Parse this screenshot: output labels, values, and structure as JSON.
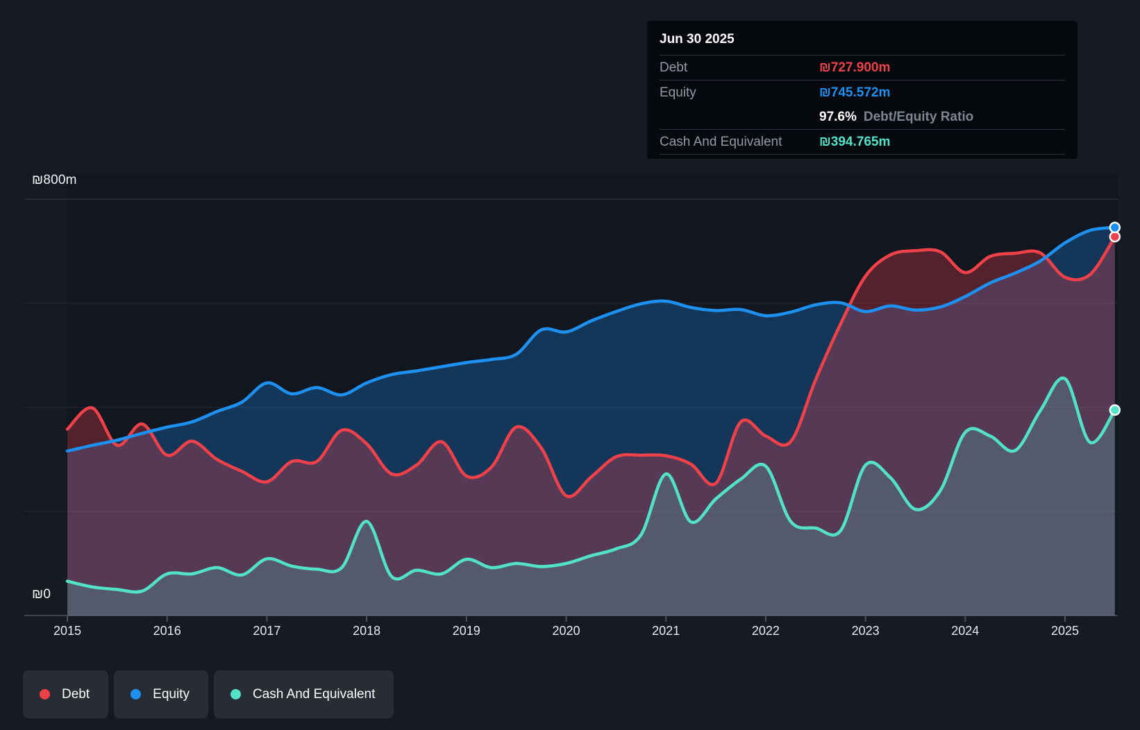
{
  "tooltip": {
    "date": "Jun 30 2025",
    "debt": {
      "label": "Debt",
      "value": "₪727.900m"
    },
    "equity": {
      "label": "Equity",
      "value": "₪745.572m"
    },
    "ratio": {
      "value": "97.6%",
      "label": "Debt/Equity Ratio"
    },
    "cash": {
      "label": "Cash And Equivalent",
      "value": "₪394.765m"
    }
  },
  "legend": {
    "items": [
      {
        "label": "Debt"
      },
      {
        "label": "Equity"
      },
      {
        "label": "Cash And Equivalent"
      }
    ]
  },
  "y_axis": {
    "top_label": "₪800m",
    "zero_label": "₪0"
  },
  "colors": {
    "debt": "#ef4149",
    "equity": "#1e90f0",
    "cash": "#52e2c6",
    "background": "#151a23",
    "plot_background": "#11161f",
    "tooltip_background": "#06090d",
    "gridline": "#232a33",
    "gridline_top": "#353c47",
    "axis_line": "#3d4450",
    "tick": "#4a515c",
    "x_label": "#e8ebef",
    "y_label": "#f3f5f7",
    "tooltip_label": "#929aa5"
  },
  "chart_data": {
    "type": "area",
    "currency": "₪",
    "unit": "m",
    "ylim": [
      0,
      800
    ],
    "y_gridlines": [
      800,
      600,
      400,
      200,
      0
    ],
    "y_tick_labels": [
      {
        "value": 800,
        "label": "₪800m"
      },
      {
        "value": 0,
        "label": "₪0"
      }
    ],
    "x_ticks": [
      2015,
      2016,
      2017,
      2018,
      2019,
      2020,
      2021,
      2022,
      2023,
      2024,
      2025
    ],
    "x_range": [
      2015,
      2025.5
    ],
    "grid": true,
    "legend_position": "bottom-left",
    "last_point_date": "Jun 30 2025",
    "x": [
      2015,
      2015.25,
      2015.5,
      2015.75,
      2016,
      2016.25,
      2016.5,
      2016.75,
      2017,
      2017.25,
      2017.5,
      2017.75,
      2018,
      2018.25,
      2018.5,
      2018.75,
      2019,
      2019.25,
      2019.5,
      2019.75,
      2020,
      2020.25,
      2020.5,
      2020.75,
      2021,
      2021.25,
      2021.5,
      2021.75,
      2022,
      2022.25,
      2022.5,
      2022.75,
      2023,
      2023.25,
      2023.5,
      2023.75,
      2024,
      2024.25,
      2024.5,
      2024.75,
      2025,
      2025.25,
      2025.5
    ],
    "series": [
      {
        "name": "Debt",
        "color": "#ef4149",
        "fill": "rgba(238,63,77,0.30)",
        "values": [
          358,
          399,
          327,
          368,
          308,
          335,
          300,
          277,
          257,
          296,
          296,
          356,
          330,
          272,
          289,
          334,
          268,
          285,
          362,
          322,
          230,
          266,
          305,
          308,
          307,
          291,
          254,
          372,
          345,
          334,
          453,
          560,
          652,
          693,
          701,
          699,
          659,
          690,
          696,
          697,
          650,
          655,
          727.9
        ]
      },
      {
        "name": "Equity",
        "color": "#1e90f0",
        "fill": "rgba(30,144,240,0.28)",
        "values": [
          316,
          327,
          337,
          350,
          362,
          372,
          392,
          410,
          447,
          426,
          438,
          424,
          447,
          463,
          470,
          478,
          486,
          492,
          502,
          549,
          545,
          566,
          584,
          599,
          604,
          592,
          586,
          588,
          576,
          583,
          597,
          601,
          584,
          595,
          587,
          593,
          613,
          639,
          658,
          681,
          716,
          740,
          745.572
        ]
      },
      {
        "name": "Cash And Equivalent",
        "color": "#52e2c6",
        "fill": "rgba(82,226,198,0.20)",
        "values": [
          66,
          55,
          50,
          47,
          80,
          80,
          92,
          78,
          109,
          95,
          89,
          92,
          181,
          75,
          87,
          80,
          108,
          92,
          100,
          94,
          100,
          115,
          128,
          155,
          272,
          180,
          224,
          262,
          287,
          181,
          168,
          163,
          289,
          265,
          204,
          240,
          352,
          345,
          317,
          393,
          455,
          333,
          394.765
        ]
      }
    ]
  }
}
